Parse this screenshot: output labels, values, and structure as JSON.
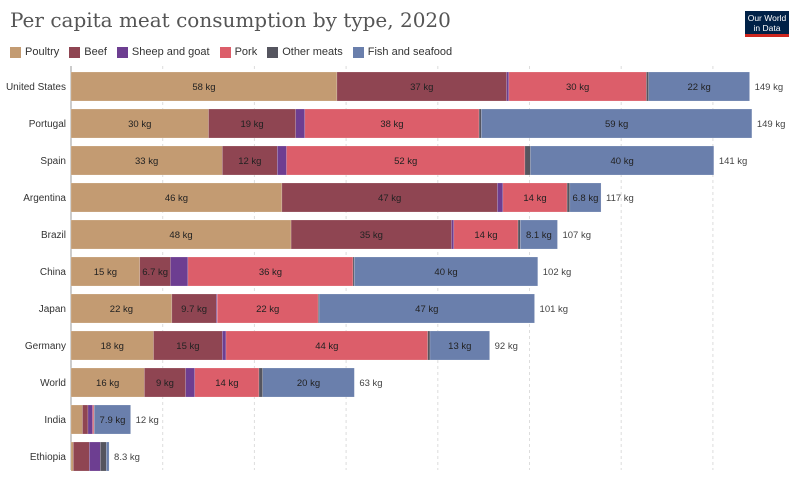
{
  "title": "Per capita meat consumption by type, 2020",
  "logo": {
    "line1": "Our World",
    "line2": "in Data"
  },
  "colors": {
    "Poultry": "#c39b72",
    "Beef": "#8f4552",
    "Sheep and goat": "#6d3e91",
    "Pork": "#dc5e6a",
    "Other meats": "#55555f",
    "Fish and seafood": "#6a7fac"
  },
  "chart_data": {
    "type": "bar",
    "orientation": "horizontal",
    "stacked": true,
    "title": "Per capita meat consumption by type, 2020",
    "unit": "kg",
    "grid": true,
    "legend_position": "top",
    "xlim": [
      0,
      150
    ],
    "categories": [
      "United States",
      "Portugal",
      "Spain",
      "Argentina",
      "Brazil",
      "China",
      "Japan",
      "Germany",
      "World",
      "India",
      "Ethiopia"
    ],
    "series": [
      {
        "name": "Poultry",
        "values": [
          58,
          30,
          33,
          46,
          48,
          15,
          22,
          18,
          16,
          2.5,
          0.5
        ]
      },
      {
        "name": "Beef",
        "values": [
          37,
          19,
          12,
          47,
          35,
          6.7,
          9.7,
          15,
          9,
          1.2,
          3.5
        ]
      },
      {
        "name": "Sheep and goat",
        "values": [
          0.5,
          2,
          2,
          1.2,
          0.5,
          3.8,
          0.2,
          0.8,
          2,
          1,
          2.4
        ]
      },
      {
        "name": "Pork",
        "values": [
          30,
          38,
          52,
          14,
          14,
          36,
          22,
          44,
          14,
          0.3,
          0
        ]
      },
      {
        "name": "Other meats",
        "values": [
          0.5,
          0.5,
          1.2,
          0.6,
          0.5,
          0.3,
          0.2,
          0.5,
          0.8,
          0.1,
          1.3
        ]
      },
      {
        "name": "Fish and seafood",
        "values": [
          22,
          59,
          40,
          6.8,
          8.1,
          40,
          47,
          13,
          20,
          7.9,
          0.6
        ]
      }
    ],
    "bar_labels": [
      [
        "58 kg",
        "37 kg",
        "",
        "30 kg",
        "",
        "22 kg"
      ],
      [
        "30 kg",
        "19 kg",
        "",
        "38 kg",
        "",
        "59 kg"
      ],
      [
        "33 kg",
        "12 kg",
        "",
        "52 kg",
        "",
        "40 kg"
      ],
      [
        "46 kg",
        "47 kg",
        "",
        "14 kg",
        "",
        "6.8 kg"
      ],
      [
        "48 kg",
        "35 kg",
        "",
        "14 kg",
        "",
        "8.1 kg"
      ],
      [
        "15 kg",
        "6.7 kg",
        "",
        "36 kg",
        "",
        "40 kg"
      ],
      [
        "22 kg",
        "9.7 kg",
        "",
        "22 kg",
        "",
        "47 kg"
      ],
      [
        "18 kg",
        "15 kg",
        "",
        "44 kg",
        "",
        "13 kg"
      ],
      [
        "16 kg",
        "9 kg",
        "",
        "14 kg",
        "",
        "20 kg"
      ],
      [
        "",
        "",
        "",
        "",
        "",
        "7.9 kg"
      ],
      [
        "",
        "",
        "",
        "",
        "",
        ""
      ]
    ],
    "totals": [
      "149 kg",
      "149 kg",
      "141 kg",
      "117 kg",
      "107 kg",
      "102 kg",
      "101 kg",
      "92 kg",
      "63 kg",
      "12 kg",
      "8.3 kg"
    ]
  }
}
